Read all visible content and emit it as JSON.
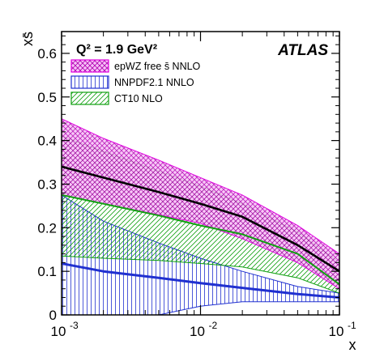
{
  "chart_data": {
    "type": "area",
    "xscale": "log",
    "xlim": [
      0.001,
      0.1
    ],
    "ylim": [
      0,
      0.65
    ],
    "xlabel": "x",
    "ylabel": "xs̄",
    "annotation": "Q² = 1.9 GeV²",
    "experiment": "ATLAS",
    "x_ticks": [
      0.001,
      0.01,
      0.1
    ],
    "x_tick_labels": [
      {
        "base": "10",
        "exp": "-3"
      },
      {
        "base": "10",
        "exp": "-2"
      },
      {
        "base": "10",
        "exp": "-1"
      }
    ],
    "y_ticks": [
      0,
      0.1,
      0.2,
      0.3,
      0.4,
      0.5,
      0.6
    ],
    "y_tick_labels": [
      "0",
      "0.1",
      "0.2",
      "0.3",
      "0.4",
      "0.5",
      "0.6"
    ],
    "legend_position": "top",
    "series": [
      {
        "name": "epWZ free s̄ NNLO",
        "color": "#e000e0",
        "fill": "#f0a0f0",
        "hatch": "crosshatch",
        "x": [
          0.001,
          0.002,
          0.005,
          0.01,
          0.02,
          0.05,
          0.1
        ],
        "central": [
          0.34,
          0.315,
          0.282,
          0.255,
          0.225,
          0.16,
          0.1
        ],
        "upper": [
          0.45,
          0.405,
          0.355,
          0.315,
          0.275,
          0.205,
          0.14
        ],
        "lower": [
          0.275,
          0.255,
          0.23,
          0.21,
          0.175,
          0.12,
          0.06
        ]
      },
      {
        "name": "NNPDF2.1 NNLO",
        "color": "#2030d0",
        "fill": "#ffffff",
        "hatch": "vertical",
        "x": [
          0.001,
          0.002,
          0.005,
          0.01,
          0.02,
          0.05,
          0.1
        ],
        "central": [
          0.118,
          0.1,
          0.085,
          0.073,
          0.062,
          0.048,
          0.04
        ],
        "upper": [
          0.275,
          0.215,
          0.165,
          0.13,
          0.1,
          0.065,
          0.05
        ],
        "lower": [
          0.0,
          0.0,
          0.0,
          0.02,
          0.03,
          0.03,
          0.03
        ]
      },
      {
        "name": "CT10 NLO",
        "color": "#10a010",
        "fill": "#ffffff",
        "hatch": "diagonal",
        "x": [
          0.001,
          0.002,
          0.005,
          0.01,
          0.02,
          0.05,
          0.1
        ],
        "central": [
          0.275,
          0.255,
          0.228,
          0.205,
          0.185,
          0.14,
          0.07
        ],
        "upper": [
          0.41,
          0.375,
          0.33,
          0.295,
          0.255,
          0.19,
          0.12
        ],
        "lower": [
          0.135,
          0.13,
          0.125,
          0.118,
          0.11,
          0.085,
          0.05
        ]
      }
    ]
  }
}
